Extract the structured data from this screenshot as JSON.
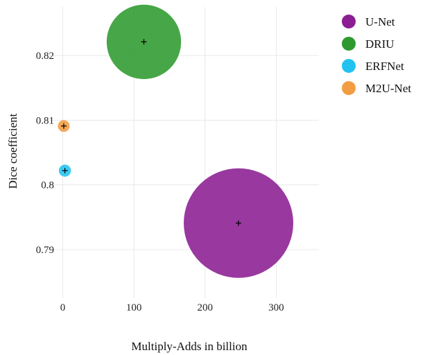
{
  "chart_data": {
    "type": "scatter",
    "xlabel": "Multiply-Adds in billion",
    "ylabel": "Dice coefficient",
    "xlim": [
      -20,
      360
    ],
    "ylim": [
      0.7825,
      0.8275
    ],
    "x_ticks": [
      0,
      100,
      200,
      300
    ],
    "y_ticks": [
      0.79,
      0.8,
      0.81,
      0.82
    ],
    "y_tick_labels": [
      "0.79",
      "0.8",
      "0.81",
      "0.82"
    ],
    "grid": true,
    "legend_position": "right",
    "bubble_size_encodes": "Multiply-Adds in billion",
    "series": [
      {
        "name": "U-Net",
        "color": "#8B1E93",
        "points": [
          {
            "x": 247,
            "y": 0.7941
          }
        ]
      },
      {
        "name": "DRIU",
        "color": "#2E9A2E",
        "points": [
          {
            "x": 114,
            "y": 0.8221
          }
        ]
      },
      {
        "name": "ERFNet",
        "color": "#22C3F0",
        "points": [
          {
            "x": 3,
            "y": 0.8022
          }
        ]
      },
      {
        "name": "M2U-Net",
        "color": "#F29D43",
        "points": [
          {
            "x": 1.4,
            "y": 0.8091
          }
        ]
      }
    ]
  }
}
